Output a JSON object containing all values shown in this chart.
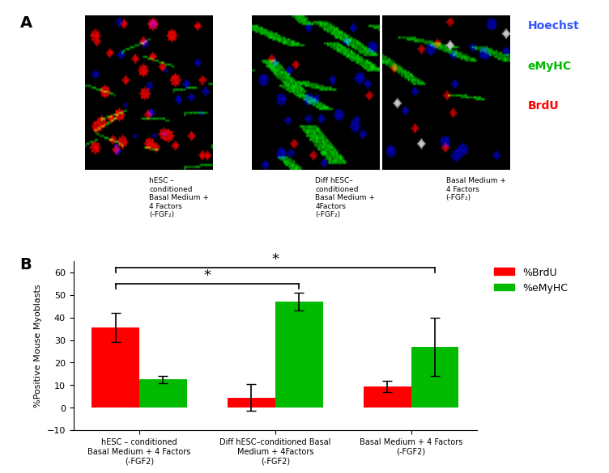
{
  "categories": [
    "hESC – conditioned\nBasal Medium + 4 Factors\n(-FGF2)",
    "Diff hESC–conditioned Basal\nMedium + 4Factors\n(-FGF2)",
    "Basal Medium + 4 Factors\n(-FGF2)"
  ],
  "brdu_values": [
    35.5,
    4.5,
    9.5
  ],
  "emyhc_values": [
    12.5,
    47.0,
    27.0
  ],
  "brdu_errors": [
    6.5,
    6.0,
    2.5
  ],
  "emyhc_errors": [
    1.5,
    4.0,
    13.0
  ],
  "brdu_color": "#FF0000",
  "emyhc_color": "#00BB00",
  "ylabel": "%Positive Mouse Myoblasts",
  "ylim": [
    -10,
    65
  ],
  "yticks": [
    -10,
    0,
    10,
    20,
    30,
    40,
    50,
    60
  ],
  "bar_width": 0.35,
  "legend_brdu": "%BrdU",
  "legend_emyhc": "%eMyHC",
  "panel_a_label": "A",
  "panel_b_label": "B",
  "hoechst_color": "#3355FF",
  "emyhc_legend_color": "#00BB00",
  "brdu_legend_color": "#FF0000",
  "image_labels": [
    "hESC –\nconditioned\nBasal Medium +\n4 Factors\n(-FGF₂)",
    "Diff hESC–\nconditioned\nBasal Medium +\n4Factors\n(-FGF₂)",
    "Basal Medium +\n4 Factors\n(-FGF₂)"
  ]
}
